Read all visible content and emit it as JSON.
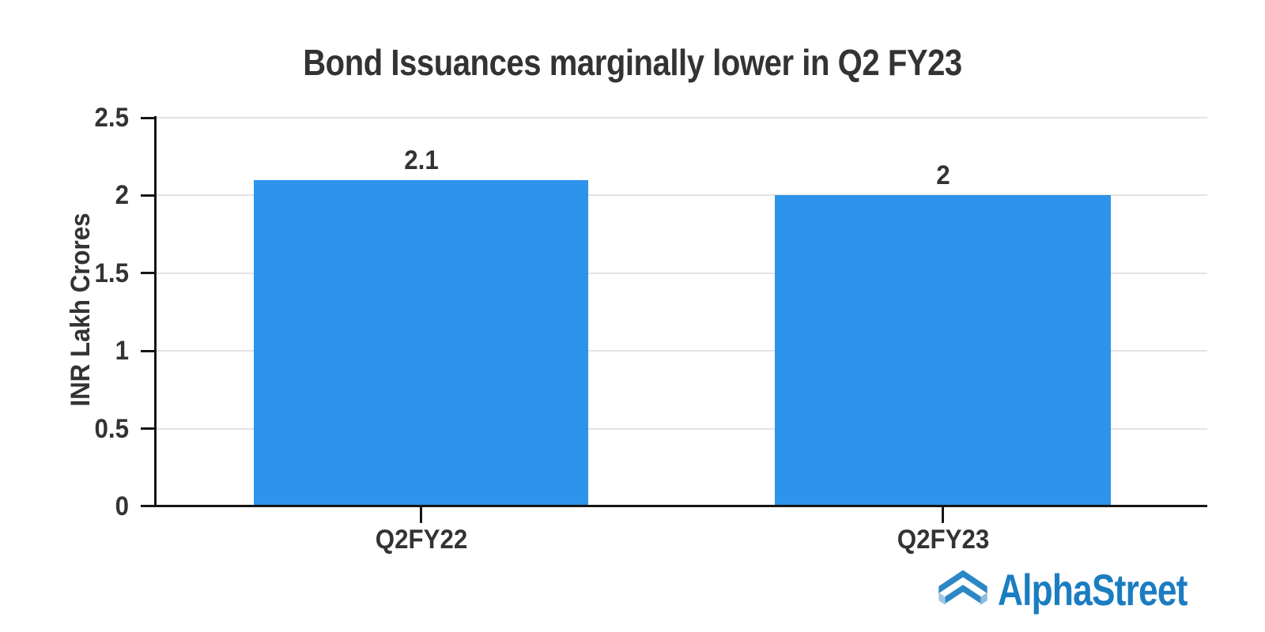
{
  "title": "Bond Issuances marginally lower in Q2 FY23",
  "branding": {
    "logo_text": "AlphaStreet",
    "logo_text_color": "#1B7DC1",
    "logo_icon_dark": "#2C87C5",
    "logo_icon_light_left": "#9FC6E3",
    "logo_icon_light_right": "#8FBCDD"
  },
  "chart_data": {
    "type": "bar",
    "title": "Bond Issuances marginally lower in Q2 FY23",
    "categories": [
      "Q2FY22",
      "Q2FY23"
    ],
    "values": [
      2.1,
      2
    ],
    "value_labels": [
      "2.1",
      "2"
    ],
    "xlabel": "",
    "ylabel": "INR Lakh Crores",
    "ylim": [
      0,
      2.5
    ],
    "yticks": [
      0,
      0.5,
      1,
      1.5,
      2,
      2.5
    ],
    "ytick_labels": [
      "0",
      "0.5",
      "1",
      "1.5",
      "2",
      "2.5"
    ],
    "bar_color": "#2E93EA",
    "text_color": "#333333",
    "axis_color": "#151515",
    "grid_color": "#e3e3e3",
    "grid": true,
    "legend": false
  }
}
